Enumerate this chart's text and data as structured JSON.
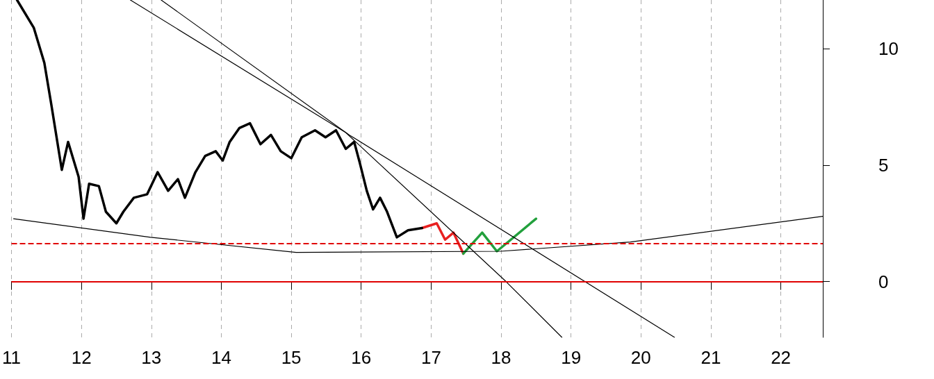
{
  "chart_data": {
    "type": "line",
    "xlim": [
      2011,
      2022.6
    ],
    "xticks": [
      {
        "value": 2011,
        "label": "11"
      },
      {
        "value": 2012,
        "label": "12"
      },
      {
        "value": 2013,
        "label": "13"
      },
      {
        "value": 2014,
        "label": "14"
      },
      {
        "value": 2015,
        "label": "15"
      },
      {
        "value": 2016,
        "label": "16"
      },
      {
        "value": 2017,
        "label": "17"
      },
      {
        "value": 2018,
        "label": "18"
      },
      {
        "value": 2019,
        "label": "19"
      },
      {
        "value": 2020,
        "label": "20"
      },
      {
        "value": 2021,
        "label": "21"
      },
      {
        "value": 2022,
        "label": "22"
      }
    ],
    "ylim": [
      -2.4,
      12.1
    ],
    "yticks": [
      0,
      5,
      10
    ],
    "grid": "x",
    "marker": "none",
    "series": [
      {
        "color": "#000000",
        "x": [
          2011.08,
          2011.32,
          2011.47,
          2011.57,
          2011.72,
          2011.81,
          2011.96,
          2012.03,
          2012.11,
          2012.25,
          2012.35,
          2012.5,
          2012.6,
          2012.75,
          2012.94,
          2013.09,
          2013.24,
          2013.38,
          2013.48,
          2013.63,
          2013.77,
          2013.92,
          2014.02,
          2014.12,
          2014.26,
          2014.41,
          2014.56,
          2014.71,
          2014.85,
          2015.0,
          2015.15,
          2015.34,
          2015.49,
          2015.64,
          2015.78,
          2015.9,
          2015.98,
          2016.08,
          2016.17,
          2016.27,
          2016.37,
          2016.51,
          2016.67,
          2016.87
        ],
        "values": [
          12.1,
          10.9,
          9.4,
          7.6,
          4.8,
          6.0,
          4.5,
          2.7,
          4.2,
          4.1,
          3.0,
          2.5,
          3.0,
          3.6,
          3.75,
          4.7,
          3.9,
          4.4,
          3.6,
          4.7,
          5.4,
          5.6,
          5.2,
          6.0,
          6.6,
          6.8,
          5.9,
          6.3,
          5.6,
          5.3,
          6.2,
          6.5,
          6.2,
          6.5,
          5.7,
          6.0,
          5.1,
          3.9,
          3.1,
          3.6,
          3.0,
          1.9,
          2.2,
          2.3
        ]
      },
      {
        "color": "#e82020",
        "x": [
          2016.87,
          2017.08,
          2017.2,
          2017.32,
          2017.46
        ],
        "values": [
          2.3,
          2.5,
          1.8,
          2.1,
          1.2
        ]
      },
      {
        "color": "#22a03c",
        "x": [
          2017.46,
          2017.73,
          2017.94,
          2018.5
        ],
        "values": [
          1.2,
          2.1,
          1.3,
          2.7
        ]
      },
      {
        "color": "#000000",
        "x": [
          2011.03,
          2012.99,
          2015.07,
          2017.99,
          2019.85,
          2022.6
        ],
        "values": [
          2.7,
          1.9,
          1.25,
          1.3,
          1.7,
          2.8
        ]
      },
      {
        "color": "#000000",
        "x": [
          2012.7,
          2015.78,
          2018.07,
          2018.87
        ],
        "values": [
          12.1,
          6.4,
          0,
          -2.4
        ]
      },
      {
        "color": "#000000",
        "x": [
          2013.14,
          2015.83,
          2020.48
        ],
        "values": [
          12.1,
          6.3,
          -2.4
        ]
      }
    ],
    "ref_lines": [
      {
        "axis": "y",
        "value": 0,
        "color": "#e00000",
        "line_style": "solid"
      },
      {
        "axis": "y",
        "value": 1.65,
        "color": "#e00000",
        "line_style": "dashed"
      }
    ]
  }
}
